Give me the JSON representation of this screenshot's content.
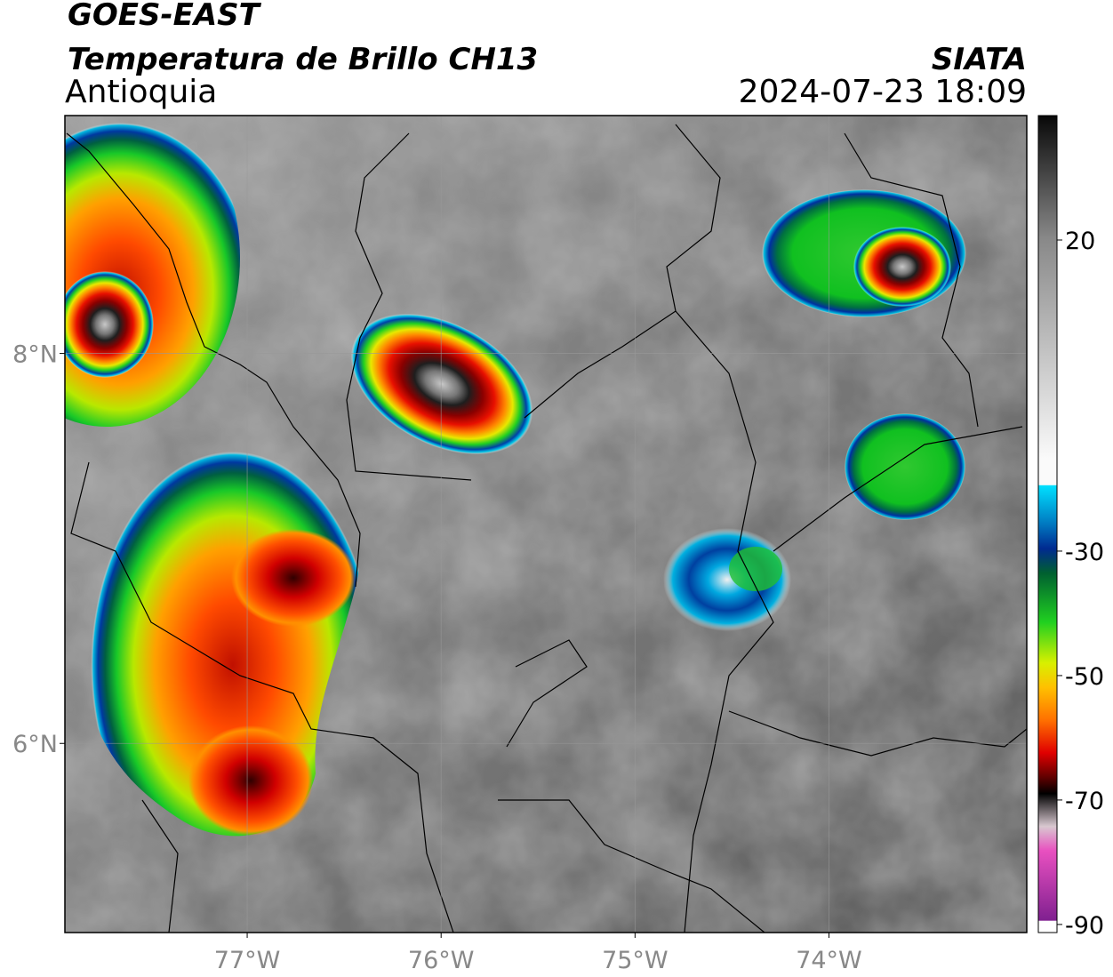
{
  "header": {
    "title": "GOES-EAST",
    "subtitle": "Temperatura de Brillo CH13",
    "region": "Antioquia",
    "source": "SIATA",
    "datetime": "2024-07-23 18:09"
  },
  "map": {
    "lon_range": [
      -77.94,
      -72.98
    ],
    "lat_range": [
      5.03,
      9.22
    ],
    "lon_ticks": [
      {
        "value": -77,
        "label": "77°W"
      },
      {
        "value": -76,
        "label": "76°W"
      },
      {
        "value": -75,
        "label": "75°W"
      },
      {
        "value": -74,
        "label": "74°W"
      }
    ],
    "lat_ticks": [
      {
        "value": 8,
        "label": "8°N"
      },
      {
        "value": 6,
        "label": "6°N"
      }
    ],
    "grid": true
  },
  "colorbar": {
    "range": [
      -91.3,
      40
    ],
    "ticks": [
      20,
      -30,
      -50,
      -70,
      -90
    ]
  }
}
